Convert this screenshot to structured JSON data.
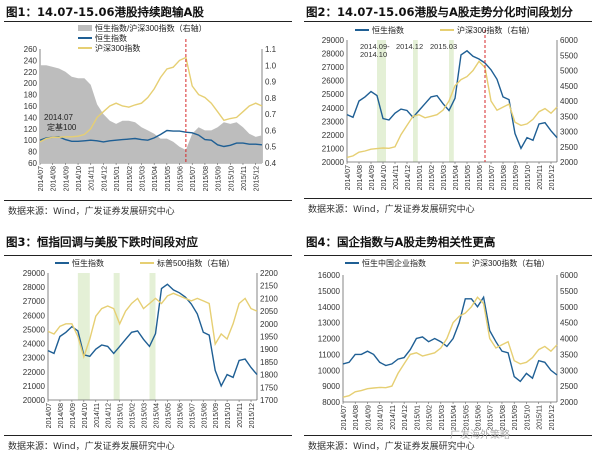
{
  "source": "数据来源：Wind，广发证券发展研究中心",
  "watermark": "广发海外策略",
  "colors": {
    "blue": "#1f5f94",
    "yellow": "#e6cf73",
    "gray": "#bdbdbd",
    "band": "#e4f0d6",
    "red": "#d62728"
  },
  "x_ticks": [
    "2014/07",
    "2014/08",
    "2014/09",
    "2014/10",
    "2014/11",
    "2014/12",
    "2015/01",
    "2015/02",
    "2015/03",
    "2015/04",
    "2015/05",
    "2015/06",
    "2015/07",
    "2015/08",
    "2015/09",
    "2015/10",
    "2015/11",
    "2015/12"
  ],
  "chart_data": [
    {
      "type": "line",
      "title": "图1：14.07-15.06港股持续跑输A股",
      "left_axis": {
        "ticks": [
          "260",
          "240",
          "220",
          "200",
          "180",
          "160",
          "140",
          "120",
          "100",
          "80",
          "60"
        ],
        "range": [
          60,
          260
        ]
      },
      "right_axis": {
        "ticks": [
          "1.1",
          "1.0",
          "0.9",
          "0.8",
          "0.7",
          "0.6",
          "0.5",
          "0.4"
        ],
        "range": [
          0.4,
          1.1
        ]
      },
      "annotations": [
        "2014.07",
        "定基100"
      ],
      "vline_at": 23,
      "bands": [],
      "series": [
        {
          "name": "恒生指数/沪深300指数（右轴）",
          "kind": "area",
          "axis": "right",
          "color": "gray",
          "values": [
            1.0,
            1.0,
            0.99,
            0.98,
            0.96,
            0.93,
            0.92,
            0.92,
            0.88,
            0.76,
            0.7,
            0.66,
            0.64,
            0.66,
            0.66,
            0.65,
            0.62,
            0.6,
            0.58,
            0.55,
            0.55,
            0.53,
            0.5,
            0.48,
            0.58,
            0.62,
            0.6,
            0.6,
            0.62,
            0.65,
            0.64,
            0.65,
            0.62,
            0.58,
            0.56,
            0.57
          ]
        },
        {
          "name": "恒生指数",
          "kind": "line",
          "axis": "left",
          "color": "blue",
          "values": [
            100,
            104,
            105,
            106,
            101,
            98,
            98,
            99,
            100,
            99,
            97,
            99,
            100,
            101,
            102,
            103,
            101,
            100,
            104,
            110,
            117,
            116,
            116,
            114,
            113,
            109,
            101,
            100,
            92,
            89,
            91,
            95,
            95,
            93,
            93,
            92
          ]
        },
        {
          "name": "沪深300指数",
          "kind": "line",
          "axis": "left",
          "color": "yellow",
          "values": [
            97,
            103,
            105,
            105,
            106,
            106,
            107,
            110,
            120,
            140,
            150,
            160,
            165,
            160,
            158,
            162,
            165,
            175,
            190,
            210,
            225,
            228,
            240,
            245,
            195,
            180,
            175,
            165,
            150,
            135,
            138,
            140,
            150,
            160,
            165,
            160
          ]
        }
      ]
    },
    {
      "type": "line",
      "title": "图2：14.07-15.06港股与A股走势分化时间段划分",
      "left_axis": {
        "ticks": [
          "29000",
          "28000",
          "27000",
          "26000",
          "25000",
          "24000",
          "23000",
          "22000",
          "21000",
          "20000"
        ],
        "range": [
          20000,
          29000
        ]
      },
      "right_axis": {
        "ticks": [
          "6000",
          "5500",
          "5000",
          "4500",
          "4000",
          "3500",
          "3000",
          "2500",
          "2000"
        ],
        "range": [
          2000,
          6000
        ]
      },
      "annotations": [
        "2014.09-",
        "2014.10",
        "2014.12",
        "2015.03"
      ],
      "vline_at": 23,
      "bands": [
        [
          5,
          6.5
        ],
        [
          11,
          11.8
        ],
        [
          17,
          17.8
        ]
      ],
      "series": [
        {
          "name": "恒生指数",
          "kind": "line",
          "axis": "left",
          "color": "blue",
          "values": [
            23500,
            23300,
            24500,
            24800,
            25200,
            24900,
            23200,
            23100,
            23600,
            23900,
            23800,
            23300,
            23800,
            24300,
            24800,
            24900,
            24300,
            23800,
            24700,
            27900,
            28200,
            27800,
            27600,
            27300,
            26800,
            26100,
            24800,
            24600,
            22100,
            21000,
            21800,
            21600,
            22800,
            22900,
            22300,
            21800
          ]
        },
        {
          "name": "沪深300指数（右轴）",
          "kind": "line",
          "axis": "right",
          "color": "yellow",
          "values": [
            2150,
            2200,
            2320,
            2360,
            2420,
            2440,
            2460,
            2450,
            2500,
            2900,
            3200,
            3500,
            3550,
            3450,
            3500,
            3550,
            3700,
            4000,
            4500,
            4700,
            4800,
            5000,
            5300,
            5100,
            4000,
            3700,
            3800,
            3900,
            3300,
            3200,
            3250,
            3400,
            3650,
            3750,
            3600,
            3800
          ]
        }
      ]
    },
    {
      "type": "line",
      "title": "图3：恒指回调与美股下跌时间段对应",
      "left_axis": {
        "ticks": [
          "29000",
          "28000",
          "27000",
          "26000",
          "25000",
          "24000",
          "23000",
          "22000",
          "21000",
          "20000"
        ],
        "range": [
          20000,
          29000
        ]
      },
      "right_axis": {
        "ticks": [
          "2200",
          "2150",
          "2100",
          "2050",
          "2000",
          "1950",
          "1900",
          "1850",
          "1800",
          "1750",
          "1700"
        ],
        "range": [
          1700,
          2200
        ]
      },
      "annotations": [],
      "vline_at": null,
      "bands": [
        [
          5,
          7
        ],
        [
          11,
          12
        ],
        [
          17,
          18
        ]
      ],
      "series": [
        {
          "name": "恒生指数",
          "kind": "line",
          "axis": "left",
          "color": "blue",
          "values": [
            23500,
            23300,
            24500,
            24800,
            25200,
            24900,
            23200,
            23100,
            23600,
            23900,
            23800,
            23300,
            23800,
            24300,
            24800,
            24900,
            24300,
            23800,
            24700,
            27900,
            28200,
            27800,
            27600,
            27300,
            26800,
            26100,
            24800,
            24600,
            22100,
            21000,
            21800,
            21600,
            22800,
            22900,
            22300,
            21800
          ]
        },
        {
          "name": "标普500指数（右轴）",
          "kind": "line",
          "axis": "right",
          "color": "yellow",
          "values": [
            1970,
            1960,
            1990,
            2000,
            2000,
            1950,
            1870,
            1940,
            2030,
            2060,
            2070,
            2060,
            2000,
            2050,
            2080,
            2100,
            2060,
            2080,
            2100,
            2080,
            2110,
            2120,
            2110,
            2100,
            2090,
            2100,
            2090,
            2080,
            1920,
            1960,
            1940,
            2000,
            2080,
            2100,
            2060,
            2050
          ]
        }
      ]
    },
    {
      "type": "line",
      "title": "图4：国企指数与A股走势相关性更高",
      "left_axis": {
        "ticks": [
          "16000",
          "15000",
          "14000",
          "13000",
          "12000",
          "11000",
          "10000",
          "9000",
          "8000"
        ],
        "range": [
          8000,
          16000
        ]
      },
      "right_axis": {
        "ticks": [
          "6000",
          "5500",
          "5000",
          "4500",
          "4000",
          "3500",
          "3000",
          "2500",
          "2000"
        ],
        "range": [
          2000,
          6000
        ]
      },
      "annotations": [],
      "vline_at": null,
      "bands": [],
      "series": [
        {
          "name": "恒生中国企业指数",
          "kind": "line",
          "axis": "left",
          "color": "blue",
          "values": [
            10400,
            10500,
            11000,
            11000,
            11200,
            11000,
            10500,
            10300,
            10400,
            10700,
            10800,
            11300,
            12000,
            12100,
            11800,
            12000,
            11800,
            11500,
            12000,
            13000,
            14500,
            14500,
            14000,
            14600,
            12500,
            11800,
            11200,
            11100,
            9600,
            9300,
            9800,
            9500,
            10600,
            10500,
            10000,
            9700
          ]
        },
        {
          "name": "沪深300指数（右轴）",
          "kind": "line",
          "axis": "right",
          "color": "yellow",
          "values": [
            2150,
            2200,
            2320,
            2360,
            2420,
            2440,
            2460,
            2450,
            2500,
            2900,
            3200,
            3500,
            3550,
            3450,
            3500,
            3550,
            3700,
            4000,
            4500,
            4700,
            4800,
            5000,
            5300,
            5100,
            4000,
            3700,
            3800,
            3900,
            3300,
            3200,
            3250,
            3400,
            3650,
            3750,
            3600,
            3800
          ]
        }
      ]
    }
  ]
}
